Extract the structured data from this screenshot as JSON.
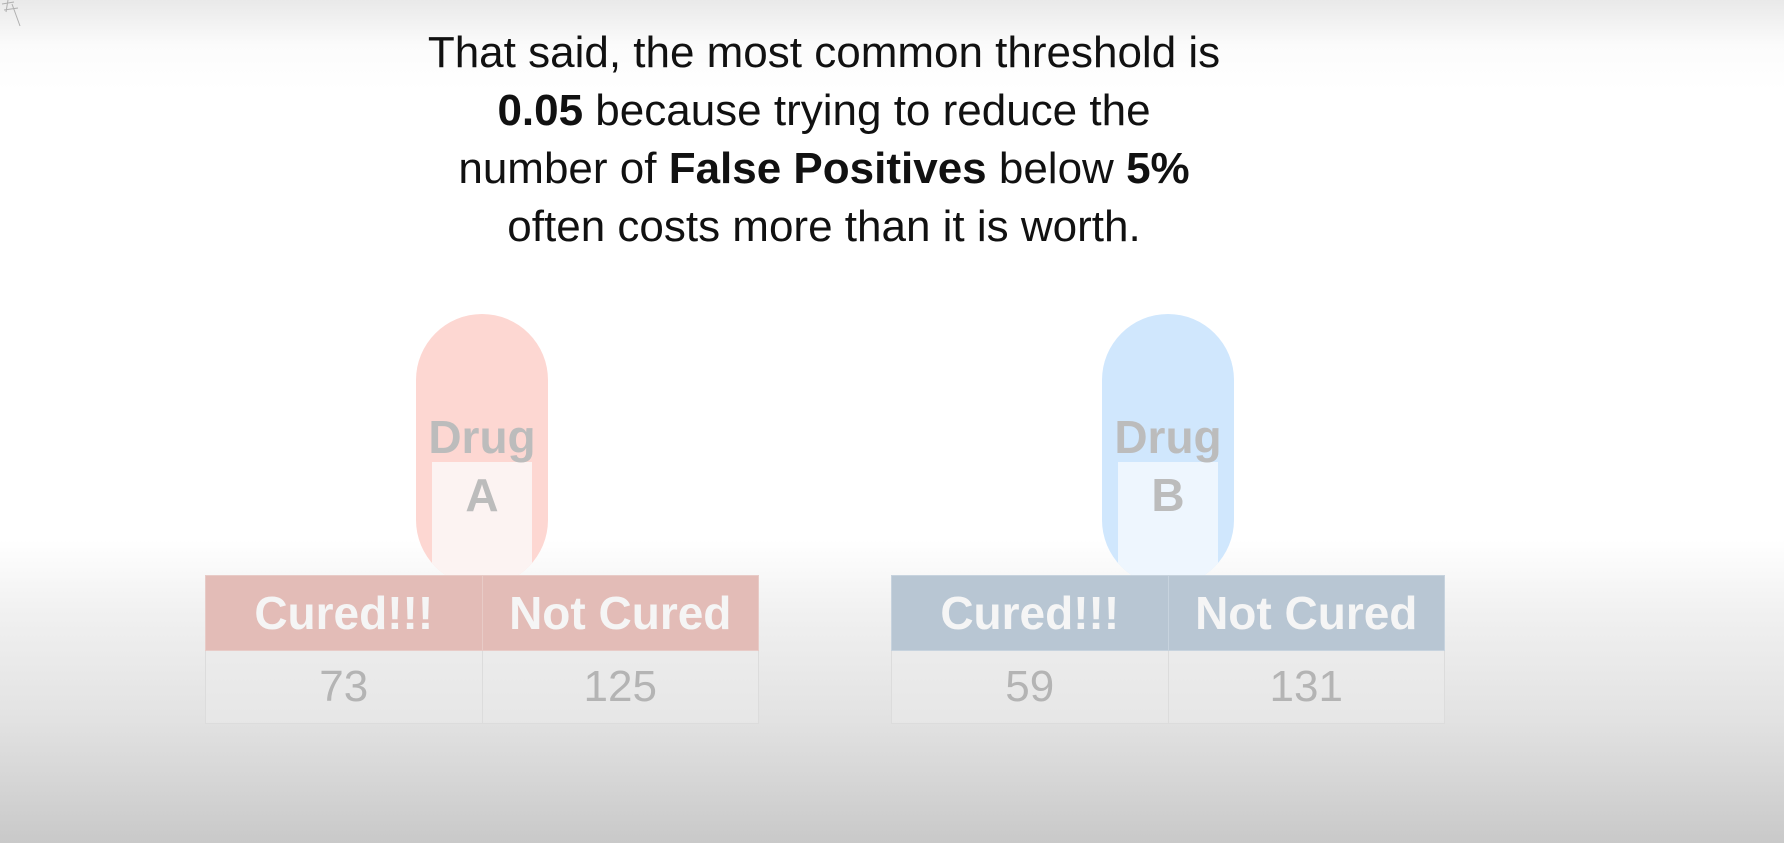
{
  "caption": {
    "line1": "That said, the most common threshold is",
    "line2_bold": "0.05",
    "line2_rest": " because trying to reduce the",
    "line3_start": "number of ",
    "line3_bold": "False Positives",
    "line3_mid": " below ",
    "line3_bold2": "5%",
    "line4": "often costs more than it is worth."
  },
  "drug_a": {
    "pill_line1": "Drug",
    "pill_line2": "A",
    "color": "#fdd7d2",
    "table": {
      "headers": [
        "Cured!!!",
        "Not Cured"
      ],
      "values": [
        "73",
        "125"
      ]
    }
  },
  "drug_b": {
    "pill_line1": "Drug",
    "pill_line2": "B",
    "color": "#d0e7fd",
    "table": {
      "headers": [
        "Cured!!!",
        "Not Cured"
      ],
      "values": [
        "59",
        "131"
      ]
    }
  }
}
